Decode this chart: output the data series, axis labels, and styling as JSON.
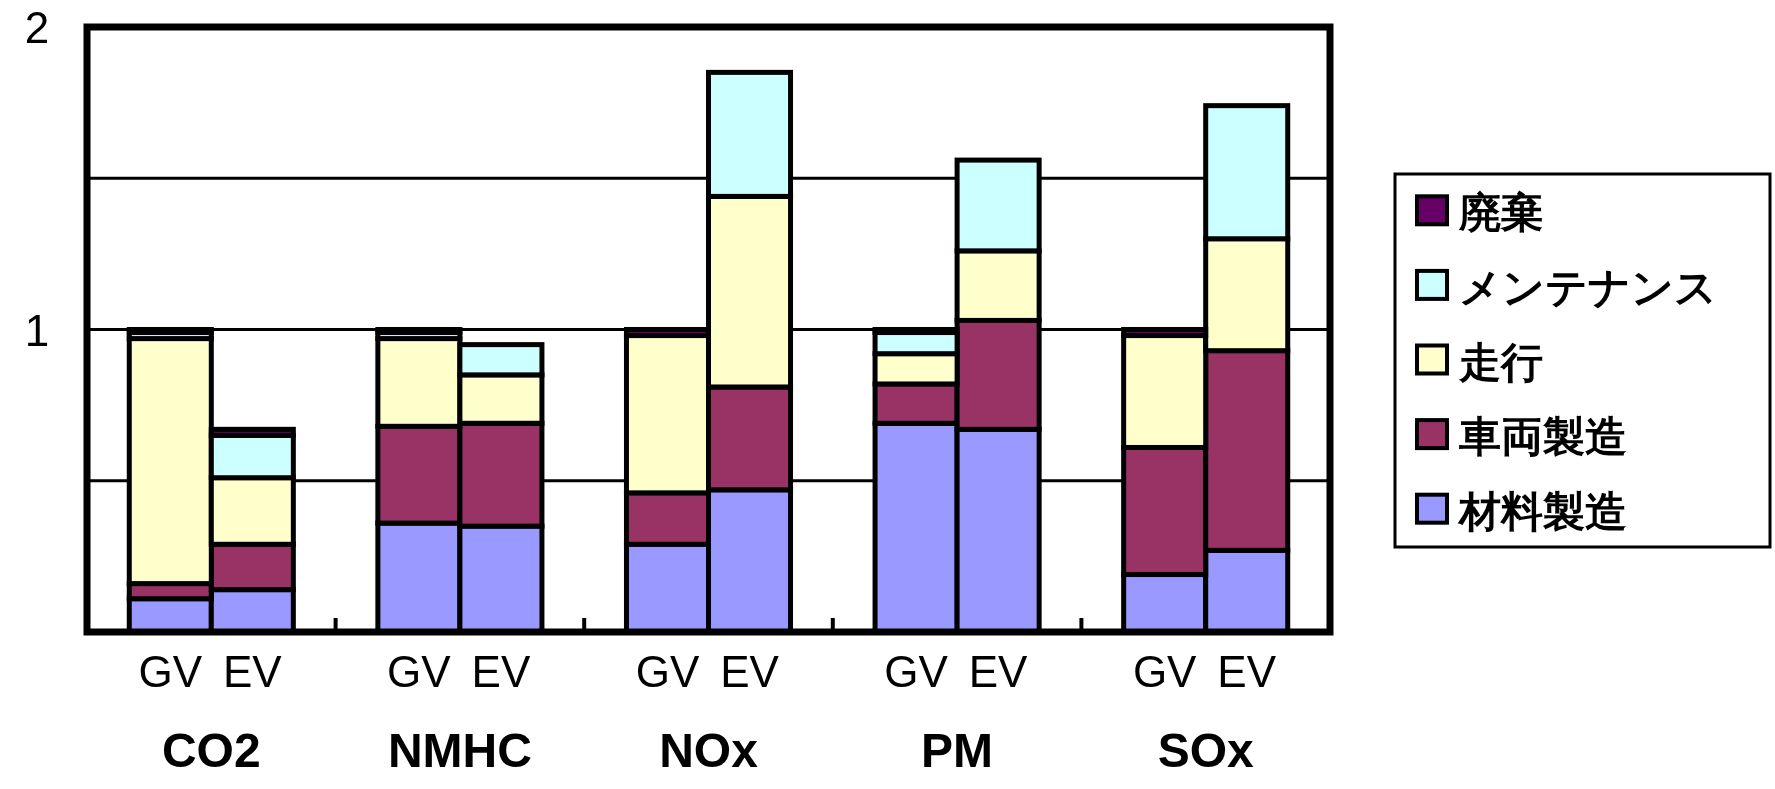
{
  "chart_data": {
    "type": "bar",
    "stacked": true,
    "categories": [
      "GV",
      "EV",
      "GV",
      "EV",
      "GV",
      "EV",
      "GV",
      "EV",
      "GV",
      "EV"
    ],
    "annotations": [
      "CO2",
      "NMHC",
      "NOx",
      "PM",
      "SOx"
    ],
    "series": [
      {
        "name": "材料製造",
        "color": "#9999ff",
        "values": [
          0.11,
          0.14,
          0.36,
          0.35,
          0.29,
          0.47,
          0.69,
          0.67,
          0.19,
          0.27
        ]
      },
      {
        "name": "車両製造",
        "color": "#993366",
        "values": [
          0.05,
          0.15,
          0.32,
          0.34,
          0.17,
          0.34,
          0.13,
          0.36,
          0.42,
          0.66
        ]
      },
      {
        "name": "走行",
        "color": "#ffffcc",
        "values": [
          0.81,
          0.22,
          0.29,
          0.16,
          0.52,
          0.63,
          0.1,
          0.23,
          0.37,
          0.37
        ]
      },
      {
        "name": "メンテナンス",
        "color": "#ccffff",
        "values": [
          0.02,
          0.14,
          0.02,
          0.1,
          null,
          0.41,
          0.07,
          0.3,
          null,
          0.44
        ]
      },
      {
        "name": "廃棄",
        "color": "#660066",
        "values": [
          0.01,
          0.02,
          0.01,
          0,
          0.02,
          0,
          0.01,
          0,
          0.02,
          0
        ]
      }
    ],
    "ylim": [
      0,
      2
    ],
    "yticks": [
      {
        "value": 0,
        "label": null
      },
      {
        "value": 0.5,
        "label": null
      },
      1,
      {
        "value": 1.5,
        "label": null
      },
      2
    ],
    "grid": "y",
    "legend": "right"
  }
}
